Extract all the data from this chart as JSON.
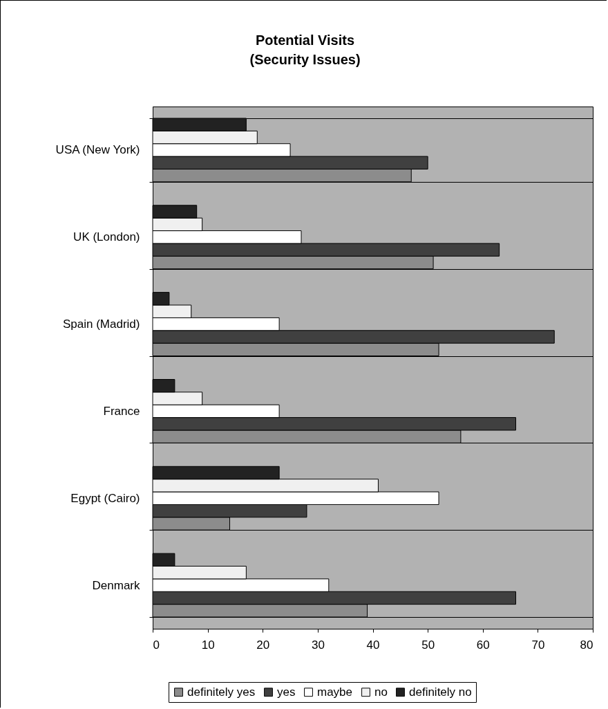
{
  "chart_data": {
    "type": "bar",
    "orientation": "horizontal",
    "title": "Potential Visits\n(Security Issues)",
    "categories": [
      "USA (New York)",
      "UK (London)",
      "Spain (Madrid)",
      "France",
      "Egypt (Cairo)",
      "Denmark"
    ],
    "series": [
      {
        "name": "definitely yes",
        "color": "#8c8c8c",
        "values": [
          47,
          51,
          52,
          56,
          14,
          39
        ]
      },
      {
        "name": "yes",
        "color": "#404040",
        "values": [
          50,
          63,
          73,
          66,
          28,
          66
        ]
      },
      {
        "name": "maybe",
        "color": "#ffffff",
        "values": [
          25,
          27,
          23,
          23,
          52,
          32
        ]
      },
      {
        "name": "no",
        "color": "#f0f0f0",
        "values": [
          19,
          9,
          7,
          9,
          41,
          17
        ]
      },
      {
        "name": "definitely no",
        "color": "#222222",
        "values": [
          17,
          8,
          3,
          4,
          23,
          4
        ]
      }
    ],
    "xlim": [
      0,
      80
    ],
    "xticks": [
      0,
      10,
      20,
      30,
      40,
      50,
      60,
      70,
      80
    ],
    "grid": "y",
    "legend": "bottom"
  }
}
